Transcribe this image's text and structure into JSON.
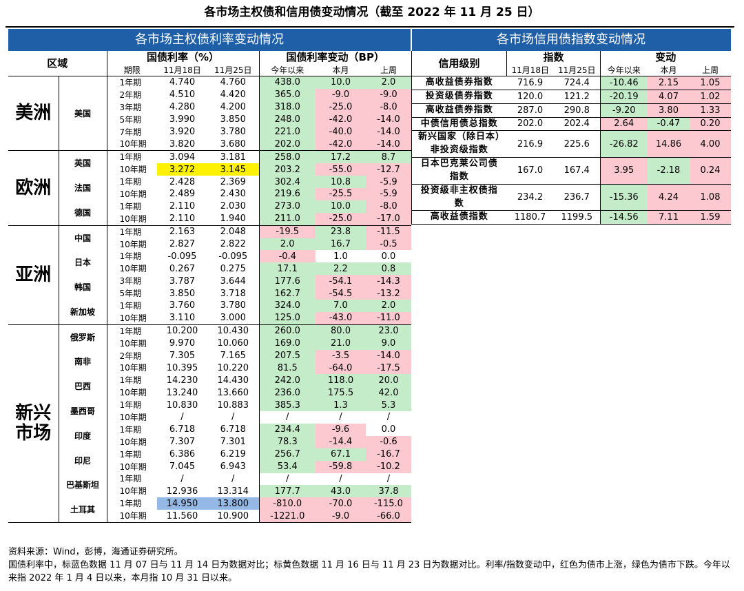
{
  "title": "各市场主权债和信用债变动情况（截至 2022 年 11 月 25 日）",
  "left": {
    "band": "各市场主权债利率变动情况",
    "region_header": "区域",
    "rate_header": "国债利率（%）",
    "change_header": "国债利率变动（BP）",
    "sub_term": "期限",
    "sub_d1": "11月18日",
    "sub_d2": "11月25日",
    "sub_ytd": "今年以来",
    "sub_mtd": "本月",
    "sub_wk": "上周"
  },
  "right": {
    "band": "各市场信用债指数变动情况",
    "rating_header": "信用级别",
    "index_header": "指数",
    "change_header": "变动",
    "sub_d1": "11月18日",
    "sub_d2": "11月25日",
    "sub_ytd": "今年以来",
    "sub_mtd": "本月",
    "sub_wk": "上周"
  },
  "regions": [
    "美洲",
    "欧洲",
    "亚洲",
    "新兴市场"
  ],
  "countries": [
    "美国",
    "英国",
    "法国",
    "德国",
    "中国",
    "日本",
    "韩国",
    "新加坡",
    "俄罗斯",
    "南非",
    "巴西",
    "墨西哥",
    "印度",
    "印尼",
    "巴基斯坦",
    "土耳其"
  ],
  "rows": [
    {
      "term": "1年期",
      "d1": "4.740",
      "d2": "4.760",
      "ytd": "438.0",
      "mtd": "10.0",
      "wk": "2.0"
    },
    {
      "term": "2年期",
      "d1": "4.510",
      "d2": "4.420",
      "ytd": "365.0",
      "mtd": "-9.0",
      "wk": "-9.0"
    },
    {
      "term": "3年期",
      "d1": "4.280",
      "d2": "4.200",
      "ytd": "318.0",
      "mtd": "-25.0",
      "wk": "-8.0"
    },
    {
      "term": "5年期",
      "d1": "3.990",
      "d2": "3.850",
      "ytd": "248.0",
      "mtd": "-42.0",
      "wk": "-14.0"
    },
    {
      "term": "7年期",
      "d1": "3.920",
      "d2": "3.780",
      "ytd": "221.0",
      "mtd": "-40.0",
      "wk": "-14.0"
    },
    {
      "term": "10年期",
      "d1": "3.820",
      "d2": "3.680",
      "ytd": "202.0",
      "mtd": "-42.0",
      "wk": "-14.0"
    },
    {
      "term": "1年期",
      "d1": "3.094",
      "d2": "3.181",
      "ytd": "258.0",
      "mtd": "17.2",
      "wk": "8.7"
    },
    {
      "term": "10年期",
      "d1": "3.272",
      "d2": "3.145",
      "ytd": "203.2",
      "mtd": "-55.0",
      "wk": "-12.7"
    },
    {
      "term": "1年期",
      "d1": "2.428",
      "d2": "2.369",
      "ytd": "302.4",
      "mtd": "10.8",
      "wk": "-5.9"
    },
    {
      "term": "10年期",
      "d1": "2.489",
      "d2": "2.430",
      "ytd": "219.6",
      "mtd": "-25.5",
      "wk": "-5.9"
    },
    {
      "term": "1年期",
      "d1": "2.110",
      "d2": "2.030",
      "ytd": "273.0",
      "mtd": "10.0",
      "wk": "-8.0"
    },
    {
      "term": "10年期",
      "d1": "2.110",
      "d2": "1.940",
      "ytd": "211.0",
      "mtd": "-25.0",
      "wk": "-17.0"
    },
    {
      "term": "1年期",
      "d1": "2.163",
      "d2": "2.048",
      "ytd": "-19.5",
      "mtd": "23.8",
      "wk": "-11.5"
    },
    {
      "term": "10年期",
      "d1": "2.827",
      "d2": "2.822",
      "ytd": "2.0",
      "mtd": "16.7",
      "wk": "-0.5"
    },
    {
      "term": "1年期",
      "d1": "-0.095",
      "d2": "-0.095",
      "ytd": "-0.4",
      "mtd": "1.0",
      "wk": "0.0"
    },
    {
      "term": "10年期",
      "d1": "0.267",
      "d2": "0.275",
      "ytd": "17.1",
      "mtd": "2.2",
      "wk": "0.8"
    },
    {
      "term": "3年期",
      "d1": "3.787",
      "d2": "3.644",
      "ytd": "177.6",
      "mtd": "-54.1",
      "wk": "-14.3"
    },
    {
      "term": "5年期",
      "d1": "3.850",
      "d2": "3.718",
      "ytd": "162.7",
      "mtd": "-54.5",
      "wk": "-13.2"
    },
    {
      "term": "1年期",
      "d1": "3.760",
      "d2": "3.780",
      "ytd": "324.0",
      "mtd": "7.0",
      "wk": "2.0"
    },
    {
      "term": "10年期",
      "d1": "3.110",
      "d2": "3.000",
      "ytd": "125.0",
      "mtd": "-43.0",
      "wk": "-11.0"
    },
    {
      "term": "1年期",
      "d1": "10.200",
      "d2": "10.430",
      "ytd": "260.0",
      "mtd": "80.0",
      "wk": "23.0"
    },
    {
      "term": "10年期",
      "d1": "9.970",
      "d2": "10.060",
      "ytd": "169.0",
      "mtd": "21.0",
      "wk": "9.0"
    },
    {
      "term": "2年期",
      "d1": "7.305",
      "d2": "7.165",
      "ytd": "207.5",
      "mtd": "-3.5",
      "wk": "-14.0"
    },
    {
      "term": "10年期",
      "d1": "10.395",
      "d2": "10.220",
      "ytd": "81.5",
      "mtd": "-64.0",
      "wk": "-17.5"
    },
    {
      "term": "1年期",
      "d1": "14.230",
      "d2": "14.430",
      "ytd": "242.0",
      "mtd": "118.0",
      "wk": "20.0"
    },
    {
      "term": "10年期",
      "d1": "13.240",
      "d2": "13.660",
      "ytd": "236.0",
      "mtd": "175.5",
      "wk": "42.0"
    },
    {
      "term": "1年期",
      "d1": "10.830",
      "d2": "10.883",
      "ytd": "385.3",
      "mtd": "1.3",
      "wk": "5.3"
    },
    {
      "term": "10年期",
      "d1": "/",
      "d2": "/",
      "ytd": "/",
      "mtd": "/",
      "wk": "/"
    },
    {
      "term": "1年期",
      "d1": "6.718",
      "d2": "6.718",
      "ytd": "234.4",
      "mtd": "-9.6",
      "wk": "0.0"
    },
    {
      "term": "10年期",
      "d1": "7.307",
      "d2": "7.301",
      "ytd": "78.3",
      "mtd": "-14.4",
      "wk": "-0.6"
    },
    {
      "term": "1年期",
      "d1": "6.386",
      "d2": "6.219",
      "ytd": "256.7",
      "mtd": "67.1",
      "wk": "-16.7"
    },
    {
      "term": "10年期",
      "d1": "7.045",
      "d2": "6.943",
      "ytd": "53.4",
      "mtd": "-59.8",
      "wk": "-10.2"
    },
    {
      "term": "1年期",
      "d1": "/",
      "d2": "/",
      "ytd": "/",
      "mtd": "/",
      "wk": "/"
    },
    {
      "term": "10年期",
      "d1": "12.936",
      "d2": "13.314",
      "ytd": "177.7",
      "mtd": "43.0",
      "wk": "37.8"
    },
    {
      "term": "1年期",
      "d1": "14.950",
      "d2": "13.800",
      "ytd": "-810.0",
      "mtd": "-70.0",
      "wk": "-115.0"
    },
    {
      "term": "10年期",
      "d1": "11.560",
      "d2": "10.900",
      "ytd": "-1221.0",
      "mtd": "-9.0",
      "wk": "-66.0"
    }
  ],
  "credit": [
    {
      "name": "高收益债券指数",
      "d1": "716.9",
      "d2": "724.4",
      "ytd": "-10.46",
      "mtd": "2.15",
      "wk": "1.05"
    },
    {
      "name": "投资级债券指数",
      "d1": "120.0",
      "d2": "121.2",
      "ytd": "-20.19",
      "mtd": "4.07",
      "wk": "1.02"
    },
    {
      "name": "高收益债券指数",
      "d1": "287.0",
      "d2": "290.8",
      "ytd": "-9.20",
      "mtd": "3.80",
      "wk": "1.33"
    },
    {
      "name": "中债信用债总指数",
      "d1": "202.0",
      "d2": "202.4",
      "ytd": "2.64",
      "mtd": "-0.47",
      "wk": "0.20"
    },
    {
      "name": "新兴国家（除日本）非投资级指数",
      "d1": "216.9",
      "d2": "225.6",
      "ytd": "-26.82",
      "mtd": "14.86",
      "wk": "4.00"
    },
    {
      "name": "日本巴克莱公司债指数",
      "d1": "167.0",
      "d2": "167.4",
      "ytd": "3.95",
      "mtd": "-2.18",
      "wk": "0.24"
    },
    {
      "name": "投资级非主权债指数",
      "d1": "234.2",
      "d2": "236.7",
      "ytd": "-15.36",
      "mtd": "4.24",
      "wk": "1.08"
    },
    {
      "name": "高收益债指数",
      "d1": "1180.7",
      "d2": "1199.5",
      "ytd": "-14.56",
      "mtd": "7.11",
      "wk": "1.59"
    }
  ],
  "notes": {
    "source": "资料来源：Wind，彭博，海通证券研究所。",
    "note": "国债利率中，标蓝色数据 11 月 07 日与 11 月 14 日为数据对比；标黄色数据 11 月 16 日与 11 月 23 日为数据对比。利率/指数变动中，红色为债市上涨，绿色为债市下跌。今年以来指 2022 年 1 月 4 日以来，本月指 10 月 31 日以来。"
  },
  "colors": {
    "band": "#1f5fa8",
    "up_red": "#fbc9cf",
    "down_green": "#c5ecc9",
    "yellow": "#fff200",
    "blue": "#95b9e6"
  }
}
